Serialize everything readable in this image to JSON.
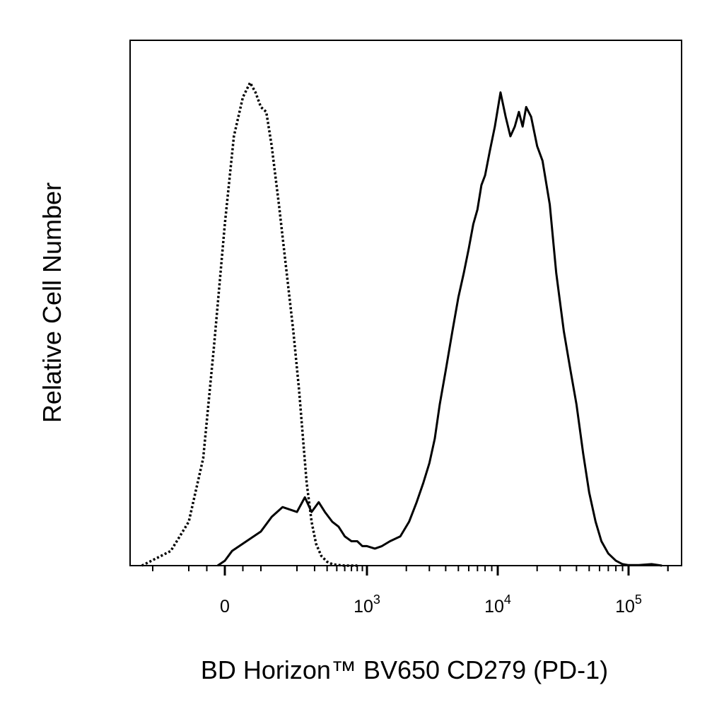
{
  "chart_data": {
    "type": "line",
    "title": "",
    "xlabel": "BD Horizon™ BV650 CD279 (PD-1)",
    "ylabel": "Relative Cell Number",
    "x_scale": "biexponential",
    "xlim": [
      -300,
      200000
    ],
    "ylim": [
      0,
      1
    ],
    "grid": false,
    "legend": "none",
    "x_tick_labels": [
      {
        "base": "0",
        "exp": "",
        "value": 0
      },
      {
        "base": "10",
        "exp": "3",
        "value": 1000
      },
      {
        "base": "10",
        "exp": "4",
        "value": 10000
      },
      {
        "base": "10",
        "exp": "5",
        "value": 100000
      }
    ],
    "series": [
      {
        "style": "dotted",
        "color": "#000000",
        "x": [
          -230,
          -150,
          -100,
          -60,
          -30,
          0,
          25,
          50,
          70,
          85,
          100,
          115,
          130,
          150,
          170,
          190,
          210,
          230,
          250,
          280,
          310,
          350,
          400,
          450,
          520,
          600,
          700,
          800
        ],
        "y": [
          0.0,
          0.03,
          0.09,
          0.22,
          0.45,
          0.7,
          0.88,
          0.96,
          0.99,
          0.97,
          0.94,
          0.93,
          0.86,
          0.74,
          0.61,
          0.48,
          0.36,
          0.26,
          0.17,
          0.09,
          0.045,
          0.02,
          0.008,
          0.003,
          0.001,
          0.0,
          0.0,
          0.0
        ]
      },
      {
        "style": "solid",
        "color": "#000000",
        "x": [
          -20,
          0,
          20,
          60,
          100,
          130,
          160,
          200,
          240,
          280,
          330,
          380,
          450,
          520,
          600,
          700,
          800,
          900,
          1000,
          1150,
          1300,
          1500,
          1800,
          2100,
          2400,
          2700,
          3000,
          3300,
          3600,
          4000,
          4500,
          5000,
          5500,
          6000,
          6500,
          7000,
          7500,
          8000,
          8700,
          9500,
          10500,
          11500,
          12500,
          13500,
          14500,
          15500,
          16500,
          18000,
          20000,
          22000,
          25000,
          28000,
          32000,
          36000,
          40000,
          45000,
          50000,
          56000,
          62000,
          70000,
          80000,
          90000,
          100000,
          120000,
          150000,
          180000
        ],
        "y": [
          0.0,
          0.01,
          0.03,
          0.05,
          0.07,
          0.1,
          0.12,
          0.11,
          0.14,
          0.11,
          0.13,
          0.11,
          0.09,
          0.08,
          0.06,
          0.05,
          0.05,
          0.04,
          0.04,
          0.035,
          0.04,
          0.05,
          0.06,
          0.09,
          0.13,
          0.17,
          0.21,
          0.26,
          0.33,
          0.4,
          0.48,
          0.55,
          0.6,
          0.65,
          0.7,
          0.73,
          0.78,
          0.8,
          0.85,
          0.9,
          0.97,
          0.92,
          0.88,
          0.9,
          0.93,
          0.9,
          0.94,
          0.92,
          0.86,
          0.83,
          0.74,
          0.6,
          0.48,
          0.4,
          0.33,
          0.23,
          0.15,
          0.09,
          0.05,
          0.025,
          0.01,
          0.003,
          0.001,
          0.001,
          0.003,
          0.0
        ]
      }
    ]
  }
}
